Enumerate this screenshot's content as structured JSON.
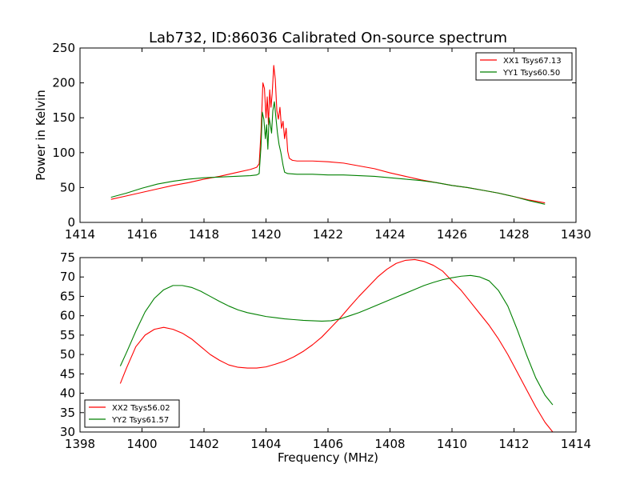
{
  "figure": {
    "title": "Lab732, ID:86036 Calibrated On-source spectrum"
  },
  "chart_data": [
    {
      "type": "line",
      "ylabel": "Power in Kelvin",
      "xlabel": "",
      "xlim": [
        1414,
        1430
      ],
      "ylim": [
        0,
        250
      ],
      "x_ticks": [
        1414,
        1416,
        1418,
        1420,
        1422,
        1424,
        1426,
        1428,
        1430
      ],
      "y_ticks": [
        0,
        50,
        100,
        150,
        200,
        250
      ],
      "legend_position": "top-right",
      "grid": false,
      "series": [
        {
          "name": "XX1 Tsys67.13",
          "color": "#ff0000",
          "points": [
            [
              1415.0,
              33
            ],
            [
              1415.5,
              38
            ],
            [
              1416.0,
              43
            ],
            [
              1416.5,
              48
            ],
            [
              1417.0,
              53
            ],
            [
              1417.5,
              57
            ],
            [
              1418.0,
              62
            ],
            [
              1418.5,
              66
            ],
            [
              1419.0,
              71
            ],
            [
              1419.5,
              76
            ],
            [
              1419.7,
              79
            ],
            [
              1419.78,
              84
            ],
            [
              1419.84,
              130
            ],
            [
              1419.9,
              200
            ],
            [
              1419.95,
              192
            ],
            [
              1420.0,
              150
            ],
            [
              1420.04,
              180
            ],
            [
              1420.08,
              140
            ],
            [
              1420.12,
              190
            ],
            [
              1420.16,
              165
            ],
            [
              1420.2,
              185
            ],
            [
              1420.25,
              225
            ],
            [
              1420.3,
              205
            ],
            [
              1420.35,
              160
            ],
            [
              1420.4,
              148
            ],
            [
              1420.45,
              165
            ],
            [
              1420.5,
              135
            ],
            [
              1420.55,
              145
            ],
            [
              1420.6,
              120
            ],
            [
              1420.65,
              135
            ],
            [
              1420.7,
              102
            ],
            [
              1420.75,
              92
            ],
            [
              1420.85,
              89
            ],
            [
              1421.0,
              88
            ],
            [
              1421.5,
              88
            ],
            [
              1422.0,
              87
            ],
            [
              1422.5,
              85
            ],
            [
              1423.0,
              81
            ],
            [
              1423.5,
              77
            ],
            [
              1424.0,
              71
            ],
            [
              1424.5,
              66
            ],
            [
              1425.0,
              61
            ],
            [
              1425.5,
              57
            ],
            [
              1426.0,
              53
            ],
            [
              1426.5,
              50
            ],
            [
              1427.0,
              46
            ],
            [
              1427.5,
              42
            ],
            [
              1428.0,
              37
            ],
            [
              1428.5,
              32
            ],
            [
              1429.0,
              28
            ]
          ]
        },
        {
          "name": "YY1 Tsys60.50",
          "color": "#008000",
          "points": [
            [
              1415.0,
              36
            ],
            [
              1415.5,
              42
            ],
            [
              1416.0,
              49
            ],
            [
              1416.5,
              55
            ],
            [
              1417.0,
              59
            ],
            [
              1417.5,
              62
            ],
            [
              1418.0,
              64
            ],
            [
              1418.5,
              65
            ],
            [
              1419.0,
              66
            ],
            [
              1419.5,
              67
            ],
            [
              1419.7,
              68
            ],
            [
              1419.78,
              70
            ],
            [
              1419.84,
              110
            ],
            [
              1419.88,
              158
            ],
            [
              1419.93,
              148
            ],
            [
              1419.98,
              120
            ],
            [
              1420.02,
              140
            ],
            [
              1420.06,
              105
            ],
            [
              1420.1,
              150
            ],
            [
              1420.14,
              140
            ],
            [
              1420.18,
              128
            ],
            [
              1420.22,
              160
            ],
            [
              1420.27,
              173
            ],
            [
              1420.32,
              150
            ],
            [
              1420.37,
              128
            ],
            [
              1420.42,
              112
            ],
            [
              1420.48,
              100
            ],
            [
              1420.55,
              82
            ],
            [
              1420.6,
              72
            ],
            [
              1420.7,
              70
            ],
            [
              1421.0,
              69
            ],
            [
              1421.5,
              69
            ],
            [
              1422.0,
              68
            ],
            [
              1422.5,
              68
            ],
            [
              1423.0,
              67
            ],
            [
              1423.5,
              66
            ],
            [
              1424.0,
              64
            ],
            [
              1424.5,
              62
            ],
            [
              1425.0,
              60
            ],
            [
              1425.5,
              57
            ],
            [
              1426.0,
              53
            ],
            [
              1426.5,
              50
            ],
            [
              1427.0,
              46
            ],
            [
              1427.5,
              42
            ],
            [
              1428.0,
              37
            ],
            [
              1428.5,
              31
            ],
            [
              1429.0,
              26
            ]
          ]
        }
      ]
    },
    {
      "type": "line",
      "xlabel": "Frequency (MHz)",
      "ylabel": "",
      "xlim": [
        1398,
        1414
      ],
      "ylim": [
        30,
        75
      ],
      "x_ticks": [
        1398,
        1400,
        1402,
        1404,
        1406,
        1408,
        1410,
        1412,
        1414
      ],
      "y_ticks": [
        30,
        35,
        40,
        45,
        50,
        55,
        60,
        65,
        70,
        75
      ],
      "legend_position": "bottom-left",
      "grid": false,
      "series": [
        {
          "name": "XX2 Tsys56.02",
          "color": "#ff0000",
          "points": [
            [
              1399.3,
              42.5
            ],
            [
              1399.5,
              46.5
            ],
            [
              1399.8,
              52
            ],
            [
              1400.1,
              55
            ],
            [
              1400.4,
              56.5
            ],
            [
              1400.7,
              57
            ],
            [
              1401.0,
              56.5
            ],
            [
              1401.3,
              55.5
            ],
            [
              1401.6,
              54
            ],
            [
              1401.9,
              52
            ],
            [
              1402.2,
              50
            ],
            [
              1402.5,
              48.5
            ],
            [
              1402.8,
              47.3
            ],
            [
              1403.1,
              46.7
            ],
            [
              1403.4,
              46.5
            ],
            [
              1403.7,
              46.5
            ],
            [
              1404.0,
              46.8
            ],
            [
              1404.3,
              47.5
            ],
            [
              1404.6,
              48.3
            ],
            [
              1404.9,
              49.4
            ],
            [
              1405.2,
              50.8
            ],
            [
              1405.5,
              52.5
            ],
            [
              1405.8,
              54.5
            ],
            [
              1406.1,
              57
            ],
            [
              1406.4,
              59.5
            ],
            [
              1406.7,
              62.3
            ],
            [
              1407.0,
              65
            ],
            [
              1407.3,
              67.5
            ],
            [
              1407.6,
              70
            ],
            [
              1407.9,
              72
            ],
            [
              1408.2,
              73.5
            ],
            [
              1408.5,
              74.3
            ],
            [
              1408.8,
              74.5
            ],
            [
              1409.1,
              74
            ],
            [
              1409.4,
              73
            ],
            [
              1409.7,
              71.5
            ],
            [
              1410.0,
              69
            ],
            [
              1410.3,
              66.5
            ],
            [
              1410.6,
              63.5
            ],
            [
              1410.9,
              60.5
            ],
            [
              1411.2,
              57.5
            ],
            [
              1411.5,
              54
            ],
            [
              1411.8,
              50
            ],
            [
              1412.1,
              45.5
            ],
            [
              1412.4,
              41
            ],
            [
              1412.7,
              36.5
            ],
            [
              1413.0,
              32.5
            ],
            [
              1413.25,
              30
            ]
          ]
        },
        {
          "name": "YY2 Tsys61.57",
          "color": "#008000",
          "points": [
            [
              1399.3,
              47
            ],
            [
              1399.5,
              50.5
            ],
            [
              1399.8,
              56
            ],
            [
              1400.1,
              61
            ],
            [
              1400.4,
              64.5
            ],
            [
              1400.7,
              66.7
            ],
            [
              1401.0,
              67.8
            ],
            [
              1401.3,
              67.8
            ],
            [
              1401.6,
              67.3
            ],
            [
              1401.9,
              66.3
            ],
            [
              1402.2,
              65
            ],
            [
              1402.5,
              63.7
            ],
            [
              1402.8,
              62.5
            ],
            [
              1403.1,
              61.5
            ],
            [
              1403.4,
              60.8
            ],
            [
              1403.7,
              60.3
            ],
            [
              1404.0,
              59.8
            ],
            [
              1404.3,
              59.5
            ],
            [
              1404.6,
              59.2
            ],
            [
              1404.9,
              59
            ],
            [
              1405.2,
              58.8
            ],
            [
              1405.5,
              58.7
            ],
            [
              1405.8,
              58.6
            ],
            [
              1406.1,
              58.7
            ],
            [
              1406.4,
              59.2
            ],
            [
              1406.7,
              60
            ],
            [
              1407.0,
              60.8
            ],
            [
              1407.3,
              61.8
            ],
            [
              1407.6,
              62.8
            ],
            [
              1407.9,
              63.8
            ],
            [
              1408.2,
              64.8
            ],
            [
              1408.5,
              65.8
            ],
            [
              1408.8,
              66.8
            ],
            [
              1409.1,
              67.8
            ],
            [
              1409.4,
              68.6
            ],
            [
              1409.7,
              69.3
            ],
            [
              1410.0,
              69.8
            ],
            [
              1410.3,
              70.2
            ],
            [
              1410.6,
              70.4
            ],
            [
              1410.9,
              70
            ],
            [
              1411.2,
              69
            ],
            [
              1411.5,
              66.5
            ],
            [
              1411.8,
              62.5
            ],
            [
              1412.1,
              56.5
            ],
            [
              1412.4,
              50
            ],
            [
              1412.7,
              44
            ],
            [
              1413.0,
              39.5
            ],
            [
              1413.25,
              37
            ]
          ]
        }
      ]
    }
  ]
}
